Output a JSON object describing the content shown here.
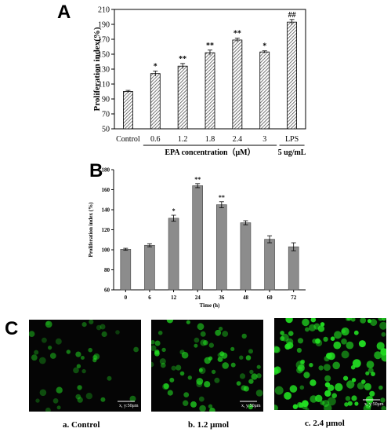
{
  "panels": {
    "a_letter": "A",
    "b_letter": "B",
    "c_letter": "C"
  },
  "chart_data": [
    {
      "type": "bar",
      "panel": "A",
      "categories": [
        "Control",
        "0.6",
        "1.2",
        "1.8",
        "2.4",
        "3",
        "LPS"
      ],
      "values": [
        100,
        124,
        134,
        152,
        169,
        153,
        193
      ],
      "errors": [
        1.5,
        3.5,
        3.5,
        3.5,
        2.5,
        1.5,
        3.5
      ],
      "annotations": [
        "",
        "*",
        "**",
        "**",
        "**",
        "*",
        "##"
      ],
      "ylabel": "Proliferation index(%)",
      "ylim": [
        50,
        210
      ],
      "yticks": [
        50,
        70,
        90,
        110,
        130,
        150,
        170,
        190,
        210
      ],
      "group_labels": [
        "EPA concentration（μM）",
        "5 ug/mL"
      ],
      "bar_pattern": "hatched",
      "grid": false
    },
    {
      "type": "bar",
      "panel": "B",
      "categories": [
        "0",
        "6",
        "12",
        "24",
        "36",
        "48",
        "60",
        "72"
      ],
      "values": [
        100.5,
        104.5,
        131.5,
        164,
        145,
        127,
        110.5,
        103
      ],
      "errors": [
        1,
        1.5,
        3,
        2,
        3,
        2,
        3.5,
        4
      ],
      "annotations": [
        "",
        "",
        "*",
        "**",
        "**",
        "",
        "",
        ""
      ],
      "xlabel": "Time (h)",
      "ylabel": "Proliferation index (%)",
      "ylim": [
        60,
        180
      ],
      "yticks": [
        60,
        80,
        100,
        120,
        140,
        160,
        180
      ],
      "bar_color": "#8c8c8c",
      "grid": false
    }
  ],
  "images": [
    {
      "caption": "a. Control",
      "scale_label": "x, y:50μm",
      "density": 40,
      "brightness": 0.55
    },
    {
      "caption": "b. 1.2 μmol",
      "scale_label": "x, y:50μm",
      "density": 70,
      "brightness": 0.75
    },
    {
      "caption": "c. 2.4 μmol",
      "scale_label": "x, y:50μm",
      "density": 110,
      "brightness": 1.0
    }
  ],
  "colors": {
    "fluorescence": "#22e022",
    "background": "#050505"
  }
}
